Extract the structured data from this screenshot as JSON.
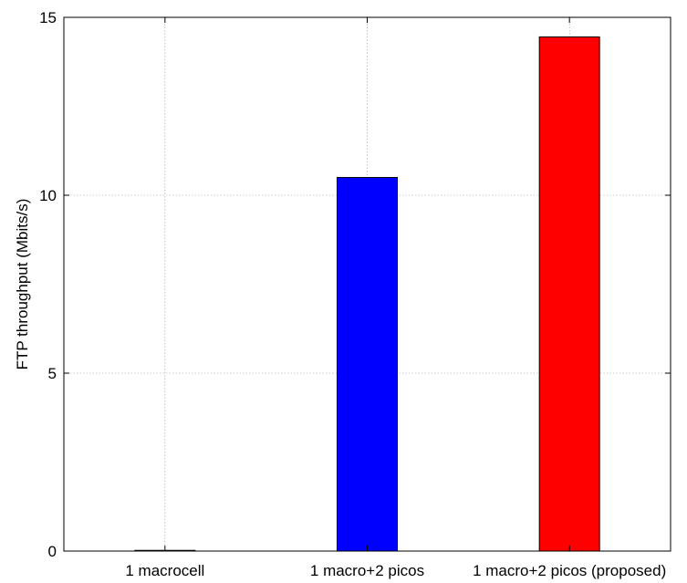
{
  "chart_data": {
    "type": "bar",
    "categories": [
      "1 macrocell",
      "1 macro+2 picos",
      "1 macro+2 picos (proposed)"
    ],
    "values": [
      0.02,
      10.5,
      14.45
    ],
    "bar_colors": [
      "#0000ff",
      "#0000ff",
      "#ff0000"
    ],
    "title": "",
    "xlabel": "",
    "ylabel": "FTP throughput (Mbits/s)",
    "ylim": [
      0,
      15
    ],
    "yticks": [
      0,
      5,
      10,
      15
    ],
    "ytick_labels": [
      "0",
      "5",
      "10",
      "15"
    ],
    "grid": true
  }
}
